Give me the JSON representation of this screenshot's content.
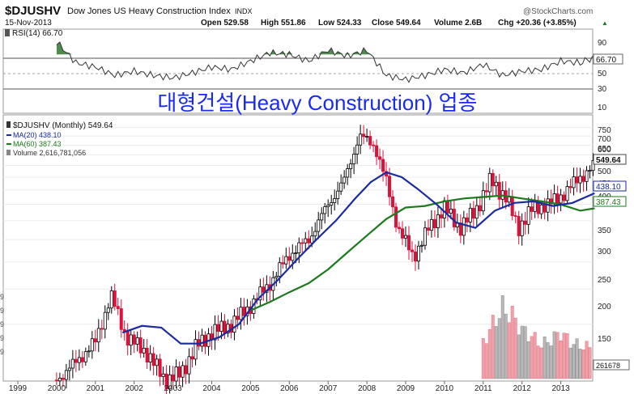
{
  "header": {
    "symbol": "$DJUSHV",
    "name": "Dow Jones US Heavy Construction Index",
    "exchange": "INDX",
    "date": "15-Nov-2013",
    "open": "Open 529.58",
    "high": "High 551.86",
    "low": "Low 524.33",
    "close": "Close 549.64",
    "volume": "Volume 2.6B",
    "chg": "Chg +20.36 (+3.85%)",
    "chg_arrow": "▲",
    "brand": "@StockCharts.com"
  },
  "rsi_panel": {
    "label": "RSI(14) 66.70",
    "last": "66.70",
    "ticks": [
      "90",
      "70",
      "50",
      "30",
      "10"
    ],
    "overbought": 70,
    "oversold": 30,
    "fill_color": "#4f8a4f"
  },
  "price_panel": {
    "legend": {
      "symbol": "$DJUSHV (Monthly) 549.64",
      "ma20": "MA(20) 438.10",
      "ma60": "MA(60) 387.43",
      "volume": "Volume 2,616,781,056"
    },
    "overlay_title": "대형건설(Heavy Construction) 업종",
    "last_price": "549.64",
    "last_ma20": "438.10",
    "last_ma60": "387.43",
    "last_volume": "261678",
    "ticks": [
      "750",
      "700",
      "650",
      "600",
      "550",
      "500",
      "450",
      "400",
      "350",
      "300",
      "250",
      "200",
      "150"
    ],
    "left_tick_fragments": [
      "9",
      "9",
      "9",
      "9",
      "9"
    ],
    "colors": {
      "up": "#000000",
      "down": "#e0103a",
      "ma20": "#1a2aa0",
      "ma60": "#1c7a1c",
      "volume_up": "#b8b8b8",
      "volume_down": "#f0a0a8",
      "title": "#1a2af0"
    }
  },
  "x_axis": {
    "labels": [
      "1999",
      "2000",
      "2001",
      "2002",
      "2003",
      "2004",
      "2005",
      "2006",
      "2007",
      "2008",
      "2009",
      "2010",
      "2011",
      "2012",
      "2013"
    ]
  },
  "chart_data": {
    "type": "line",
    "scale": "log",
    "x_unit": "year",
    "series": [
      {
        "name": "$DJUSHV (Monthly)",
        "x": [
          2000.0,
          2000.5,
          2001.0,
          2001.4,
          2001.8,
          2002.3,
          2002.8,
          2003.2,
          2003.6,
          2004.0,
          2004.5,
          2005.0,
          2005.5,
          2006.0,
          2006.5,
          2007.0,
          2007.4,
          2007.8,
          2008.2,
          2008.5,
          2008.8,
          2009.2,
          2009.6,
          2010.0,
          2010.4,
          2010.8,
          2011.2,
          2011.6,
          2011.9,
          2012.3,
          2012.7,
          2013.1,
          2013.5,
          2013.87
        ],
        "y": [
          95,
          110,
          130,
          190,
          135,
          120,
          95,
          100,
          125,
          140,
          150,
          175,
          210,
          265,
          300,
          400,
          480,
          700,
          650,
          480,
          330,
          260,
          330,
          390,
          330,
          380,
          490,
          420,
          330,
          390,
          400,
          440,
          500,
          549.64
        ]
      },
      {
        "name": "MA(20)",
        "x": [
          2001.7,
          2002.2,
          2002.7,
          2003.2,
          2003.7,
          2004.2,
          2004.7,
          2005.2,
          2005.7,
          2006.2,
          2006.7,
          2007.2,
          2007.7,
          2008.1,
          2008.5,
          2008.9,
          2009.3,
          2009.8,
          2010.3,
          2010.8,
          2011.3,
          2011.8,
          2012.3,
          2012.8,
          2013.3,
          2013.87
        ],
        "y": [
          140,
          148,
          146,
          128,
          128,
          135,
          150,
          185,
          215,
          255,
          300,
          350,
          420,
          480,
          520,
          500,
          455,
          400,
          345,
          330,
          380,
          405,
          410,
          395,
          405,
          438.1
        ]
      },
      {
        "name": "MA(60)",
        "x": [
          2005.0,
          2005.5,
          2006.0,
          2006.5,
          2007.0,
          2007.5,
          2008.0,
          2008.5,
          2009.0,
          2009.5,
          2010.0,
          2010.5,
          2011.0,
          2011.5,
          2012.0,
          2012.5,
          2013.0,
          2013.5,
          2013.87
        ],
        "y": [
          168,
          180,
          195,
          210,
          235,
          270,
          310,
          355,
          390,
          395,
          410,
          420,
          425,
          430,
          420,
          410,
          400,
          380,
          387.43
        ]
      }
    ],
    "rsi": {
      "x": [
        2000.0,
        2000.5,
        2001.0,
        2001.5,
        2002.0,
        2002.5,
        2003.0,
        2003.5,
        2004.0,
        2004.5,
        2005.0,
        2005.5,
        2006.0,
        2006.5,
        2007.0,
        2007.5,
        2008.0,
        2008.5,
        2009.0,
        2009.5,
        2010.0,
        2010.5,
        2011.0,
        2011.5,
        2012.0,
        2012.5,
        2013.0,
        2013.5,
        2013.87
      ],
      "y": [
        85,
        60,
        55,
        45,
        50,
        45,
        42,
        48,
        55,
        52,
        62,
        72,
        70,
        62,
        75,
        68,
        75,
        45,
        40,
        45,
        52,
        48,
        58,
        45,
        50,
        52,
        62,
        60,
        66.7
      ]
    },
    "volume": {
      "x": [
        2011.0,
        2011.25,
        2011.5,
        2011.75,
        2012.0,
        2012.25,
        2012.5,
        2012.75,
        2013.0,
        2013.25,
        2013.5,
        2013.75
      ],
      "y": [
        3.0,
        4.5,
        5.8,
        5.2,
        4.0,
        3.5,
        2.8,
        3.2,
        3.8,
        3.0,
        2.7,
        2.6
      ]
    }
  }
}
